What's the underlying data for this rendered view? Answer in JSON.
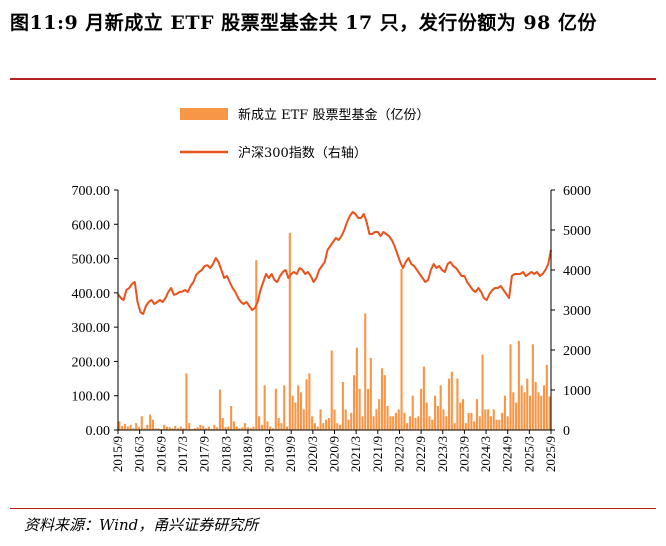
{
  "title": "图11:9 月新成立 ETF 股票型基金共 17 只，发行份额为 98 亿份",
  "source": "资料来源：Wind，甬兴证券研究所",
  "colors": {
    "bar": "#F79646",
    "line": "#E8541E",
    "rule": "#B22222"
  },
  "chart_data": {
    "type": "bar+line",
    "legend": [
      {
        "name": "新成立 ETF 股票型基金（亿份）",
        "kind": "bar"
      },
      {
        "name": "沪深300指数（右轴）",
        "kind": "line"
      }
    ],
    "y_left": {
      "min": 0,
      "max": 700,
      "ticks": [
        "0.00",
        "100.00",
        "200.00",
        "300.00",
        "400.00",
        "500.00",
        "600.00",
        "700.00"
      ]
    },
    "y_right": {
      "min": 0,
      "max": 6000,
      "ticks": [
        "0",
        "1000",
        "2000",
        "3000",
        "4000",
        "5000",
        "6000"
      ]
    },
    "x_ticks": [
      "2015/9",
      "2016/3",
      "2016/9",
      "2017/3",
      "2017/9",
      "2018/3",
      "2018/9",
      "2019/3",
      "2019/9",
      "2020/3",
      "2020/9",
      "2021/3",
      "2021/9",
      "2022/3",
      "2022/9",
      "2023/3",
      "2023/9",
      "2024/3",
      "2024/9",
      "2025/3",
      "2025/9"
    ],
    "start": "2015/9",
    "end": "2025/9",
    "bar_values": [
      25,
      12,
      18,
      10,
      15,
      5,
      20,
      8,
      40,
      5,
      15,
      45,
      30,
      5,
      5,
      3,
      15,
      10,
      8,
      5,
      12,
      5,
      10,
      5,
      165,
      20,
      3,
      5,
      8,
      15,
      12,
      5,
      10,
      3,
      15,
      8,
      118,
      35,
      8,
      10,
      70,
      25,
      10,
      5,
      8,
      20,
      8,
      5,
      10,
      495,
      40,
      15,
      130,
      25,
      10,
      5,
      120,
      35,
      20,
      130,
      10,
      575,
      100,
      80,
      130,
      110,
      60,
      148,
      165,
      40,
      20,
      10,
      60,
      20,
      30,
      35,
      232,
      60,
      20,
      15,
      140,
      60,
      30,
      50,
      160,
      240,
      120,
      40,
      340,
      120,
      210,
      40,
      60,
      90,
      180,
      160,
      70,
      40,
      40,
      50,
      60,
      470,
      50,
      20,
      40,
      100,
      35,
      40,
      120,
      185,
      80,
      40,
      30,
      100,
      70,
      130,
      60,
      40,
      150,
      170,
      20,
      150,
      80,
      90,
      20,
      50,
      50,
      25,
      90,
      40,
      220,
      60,
      60,
      40,
      60,
      30,
      30,
      50,
      100,
      40,
      250,
      110,
      80,
      260,
      130,
      110,
      150,
      100,
      250,
      140,
      110,
      100,
      130,
      190,
      98
    ],
    "index_values": [
      3400,
      3300,
      3250,
      3500,
      3550,
      3650,
      3700,
      3200,
      2950,
      2900,
      3100,
      3200,
      3250,
      3150,
      3200,
      3250,
      3200,
      3300,
      3450,
      3550,
      3380,
      3400,
      3450,
      3460,
      3500,
      3450,
      3600,
      3700,
      3880,
      3950,
      4000,
      4100,
      4120,
      4050,
      4150,
      4300,
      4200,
      4000,
      3800,
      3850,
      3700,
      3550,
      3450,
      3300,
      3200,
      3150,
      3200,
      3100,
      3000,
      3050,
      3200,
      3500,
      3700,
      3900,
      3800,
      3900,
      3750,
      3700,
      3850,
      3950,
      4000,
      3800,
      3900,
      3950,
      3900,
      4050,
      4000,
      3900,
      3950,
      3850,
      3700,
      3800,
      4000,
      4100,
      4200,
      4500,
      4600,
      4700,
      4800,
      4750,
      4850,
      5000,
      5200,
      5350,
      5450,
      5400,
      5300,
      5300,
      5400,
      5200,
      4900,
      4900,
      4950,
      4950,
      4850,
      4950,
      4900,
      4850,
      4750,
      4600,
      4400,
      4200,
      4050,
      4200,
      4300,
      4150,
      4100,
      4000,
      3900,
      3800,
      3700,
      3750,
      4000,
      4150,
      4050,
      4100,
      4000,
      3950,
      4150,
      4200,
      4100,
      4050,
      3950,
      3850,
      3850,
      3700,
      3600,
      3500,
      3450,
      3550,
      3450,
      3300,
      3250,
      3400,
      3500,
      3550,
      3550,
      3600,
      3500,
      3400,
      3300,
      3850,
      3900,
      3900,
      3900,
      3950,
      3850,
      3900,
      3950,
      3900,
      3950,
      3850,
      3900,
      4000,
      4150,
      4500
    ]
  }
}
